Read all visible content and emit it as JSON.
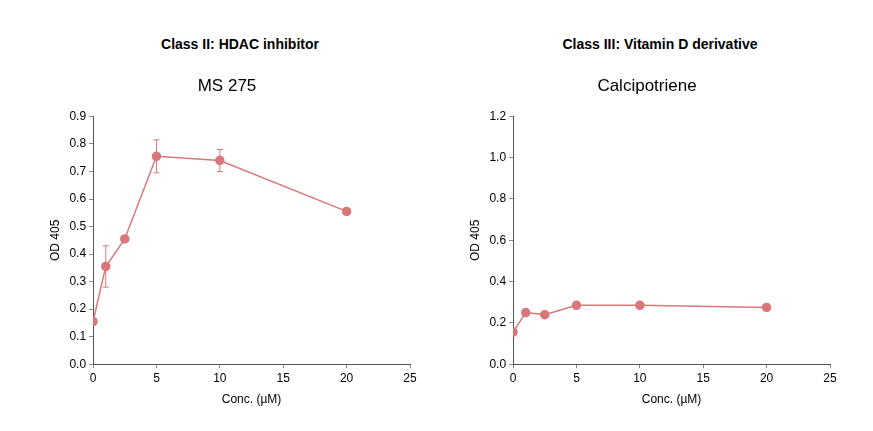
{
  "chart_data": [
    {
      "type": "line",
      "subtitle": "Class II: HDAC inhibitor",
      "title": "MS 275",
      "x_label": "Conc. (µM)",
      "y_label": "OD 405",
      "x": [
        0,
        1,
        2.5,
        5,
        10,
        20
      ],
      "values": [
        0.155,
        0.355,
        0.455,
        0.755,
        0.74,
        0.555
      ],
      "errors": [
        0.01,
        0.075,
        0.01,
        0.06,
        0.04,
        0.01
      ],
      "color": "#d9777a",
      "marker": "circle",
      "grid": false,
      "xlim": [
        0,
        25
      ],
      "xticks": [
        0,
        5,
        10,
        15,
        20,
        25
      ],
      "ylim": [
        0,
        0.9
      ],
      "yticks": [
        {
          "value": 0,
          "label": "0.0"
        },
        0.1,
        0.2,
        0.3,
        0.4,
        0.5,
        0.6,
        0.7,
        0.8,
        0.9
      ]
    },
    {
      "type": "line",
      "subtitle": "Class III: Vitamin D derivative",
      "title": "Calcipotriene",
      "x_label": "Conc. (µM)",
      "y_label": "OD 405",
      "x": [
        0,
        1,
        2.5,
        5,
        10,
        20
      ],
      "values": [
        0.155,
        0.25,
        0.24,
        0.285,
        0.285,
        0.275
      ],
      "errors": [
        0.01,
        0.015,
        0.01,
        0.015,
        0.015,
        0.01
      ],
      "color": "#d9777a",
      "marker": "circle",
      "grid": false,
      "xlim": [
        0,
        25
      ],
      "xticks": [
        0,
        5,
        10,
        15,
        20,
        25
      ],
      "ylim": [
        0,
        1.2
      ],
      "yticks": [
        {
          "value": 0,
          "label": "0.0"
        },
        0.2,
        0.4,
        0.6,
        0.8,
        {
          "value": 1,
          "label": "1.0"
        },
        1.2
      ]
    }
  ]
}
